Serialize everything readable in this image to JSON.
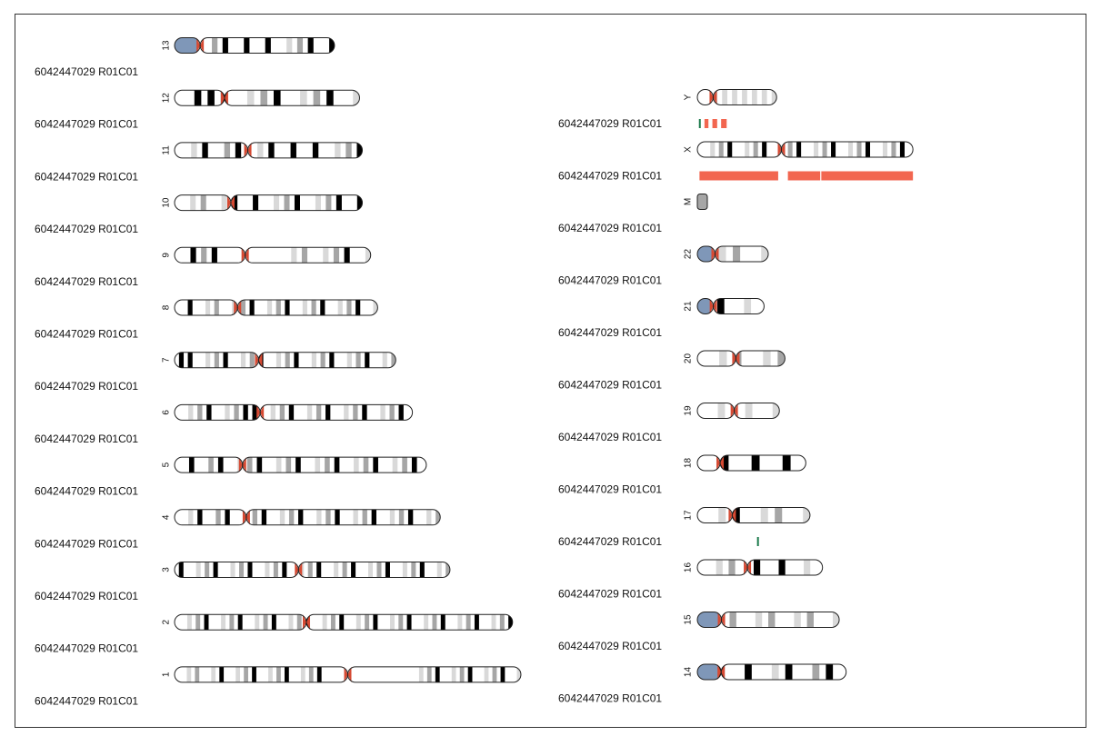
{
  "sample_label": "6042447029  R01C01",
  "colors": {
    "outline": "#222222",
    "gneg": "#ffffff",
    "gpos25": "#d9d9d9",
    "gpos50": "#a6a6a6",
    "gpos75": "#6e6e6e",
    "gpos100": "#000000",
    "acen": "#d64a33",
    "stalk": "#7f97b8",
    "cnv_loss": "#f26650",
    "cnv_gain": "#1b7a4b"
  },
  "columns": [
    {
      "name": "left",
      "chromosomes": [
        {
          "name": "13",
          "sample": "6042447029  R01C01",
          "segments": []
        },
        {
          "name": "12",
          "sample": "6042447029  R01C01",
          "segments": []
        },
        {
          "name": "11",
          "sample": "6042447029  R01C01",
          "segments": []
        },
        {
          "name": "10",
          "sample": "6042447029  R01C01",
          "segments": []
        },
        {
          "name": "9",
          "sample": "6042447029  R01C01",
          "segments": []
        },
        {
          "name": "8",
          "sample": "6042447029  R01C01",
          "segments": []
        },
        {
          "name": "7",
          "sample": "6042447029  R01C01",
          "segments": []
        },
        {
          "name": "6",
          "sample": "6042447029  R01C01",
          "segments": []
        },
        {
          "name": "5",
          "sample": "6042447029  R01C01",
          "segments": []
        },
        {
          "name": "4",
          "sample": "6042447029  R01C01",
          "segments": []
        },
        {
          "name": "3",
          "sample": "6042447029  R01C01",
          "segments": []
        },
        {
          "name": "2",
          "sample": "6042447029  R01C01",
          "segments": []
        },
        {
          "name": "1",
          "sample": "6042447029  R01C01",
          "segments": []
        }
      ]
    },
    {
      "name": "right",
      "chromosomes": [
        {
          "name": "Y",
          "sample": "6042447029  R01C01",
          "segments": [
            {
              "type": "gain",
              "start": 0.02,
              "end": 0.035
            },
            {
              "type": "loss",
              "start": 0.09,
              "end": 0.14
            },
            {
              "type": "loss",
              "start": 0.19,
              "end": 0.25
            },
            {
              "type": "loss",
              "start": 0.3,
              "end": 0.37
            }
          ]
        },
        {
          "name": "X",
          "sample": "6042447029  R01C01",
          "segments": [
            {
              "type": "loss",
              "start": 0.01,
              "end": 0.375
            },
            {
              "type": "loss",
              "start": 0.42,
              "end": 0.57
            },
            {
              "type": "loss",
              "start": 0.575,
              "end": 1.0
            }
          ]
        },
        {
          "name": "M",
          "sample": "6042447029  R01C01",
          "segments": []
        },
        {
          "name": "22",
          "sample": "6042447029  R01C01",
          "segments": []
        },
        {
          "name": "21",
          "sample": "6042447029  R01C01",
          "segments": []
        },
        {
          "name": "20",
          "sample": "6042447029  R01C01",
          "segments": []
        },
        {
          "name": "19",
          "sample": "6042447029  R01C01",
          "segments": []
        },
        {
          "name": "18",
          "sample": "6042447029  R01C01",
          "segments": []
        },
        {
          "name": "17",
          "sample": "6042447029  R01C01",
          "segments": [
            {
              "type": "gain",
              "start": 0.53,
              "end": 0.545
            }
          ]
        },
        {
          "name": "16",
          "sample": "6042447029  R01C01",
          "segments": []
        },
        {
          "name": "15",
          "sample": "6042447029  R01C01",
          "segments": []
        },
        {
          "name": "14",
          "sample": "6042447029  R01C01",
          "segments": []
        }
      ]
    }
  ],
  "chromosome_models": {
    "1": {
      "length": 249,
      "centromere": 0.5,
      "pattern": "0102030102040102030401020304010203040100000000000000000000102030401020304010203040102"
    },
    "2": {
      "length": 243,
      "centromere": 0.39,
      "pattern": "01020304010203040102030401020304010203040102030401020304010203040102030401020304"
    },
    "3": {
      "length": 198,
      "centromere": 0.45,
      "pattern": "0401020304010203040102030401020304010203040102030401020304010203"
    },
    "4": {
      "length": 191,
      "centromere": 0.27,
      "pattern": "0102040103040102030401020304010203040102030401020304010203"
    },
    "5": {
      "length": 181,
      "centromere": 0.27,
      "pattern": "0104010304010203040102030401020304010203040102030401"
    },
    "6": {
      "length": 171,
      "centromere": 0.36,
      "pattern": "0102030401020304040102030401020304010203040102030401"
    },
    "7": {
      "length": 159,
      "centromere": 0.38,
      "pattern": "04040102030401020304010203040102030401020304010203"
    },
    "8": {
      "length": 146,
      "centromere": 0.31,
      "pattern": "0104010203010203040102030401020304010203040102"
    },
    "9": {
      "length": 141,
      "centromere": 0.36,
      "pattern": "0104030401000000000010203010203040102"
    },
    "10": {
      "length": 135,
      "centromere": 0.3,
      "pattern": "010203010204010401020304010203040104"
    },
    "11": {
      "length": 135,
      "centromere": 0.39,
      "pattern": "0102040103040102040104010401020304"
    },
    "12": {
      "length": 133,
      "centromere": 0.27,
      "pattern": "0104040401020304010203040102"
    },
    "13": {
      "length": 115,
      "centromere": 0.16,
      "pattern": "010201030401040104010203040104"
    },
    "14": {
      "length": 107,
      "centromere": 0.16,
      "pattern": "0104010401020401030401"
    },
    "15": {
      "length": 102,
      "centromere": 0.17,
      "pattern": "0102030102030102030102"
    },
    "16": {
      "length": 90,
      "centromere": 0.4,
      "pattern": "01020301040104010201"
    },
    "17": {
      "length": 81,
      "centromere": 0.31,
      "pattern": "0102040102030102"
    },
    "18": {
      "length": 78,
      "centromere": 0.21,
      "pattern": "01040104010401"
    },
    "19": {
      "length": 59,
      "centromere": 0.45,
      "pattern": "010201020102"
    },
    "20": {
      "length": 63,
      "centromere": 0.44,
      "pattern": "010203010203"
    },
    "21": {
      "length": 48,
      "centromere": 0.24,
      "pattern": "0404010201"
    },
    "22": {
      "length": 51,
      "centromere": 0.25,
      "pattern": "0102030102"
    },
    "X": {
      "length": 155,
      "centromere": 0.39,
      "pattern": "01020304010203040102030401020304010203040102030401"
    },
    "Y": {
      "length": 57,
      "centromere": 0.2,
      "pattern": "0102020202020202"
    },
    "M": {
      "length": 8,
      "centromere": 0.0,
      "pattern": "03"
    }
  }
}
